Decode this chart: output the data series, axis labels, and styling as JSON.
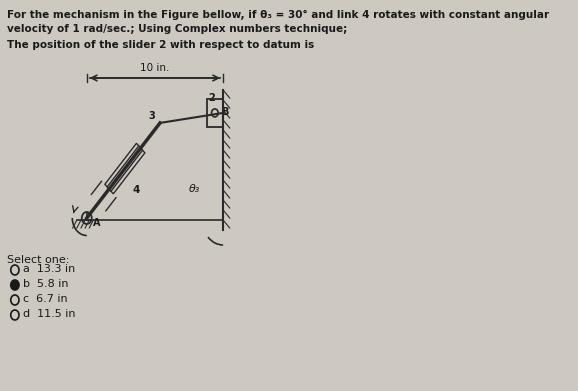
{
  "title_line1": "For the mechanism in the Figure bellow, if θ₃ = 30° and link 4 rotates with constant angular",
  "title_line2": "velocity of 1 rad/sec.; Using Complex numbers technique;",
  "subtitle": "The position of the slider 2 with respect to datum is",
  "dimension_label": "10 in.",
  "angle_label": "θ₃",
  "select_one": "Select one:",
  "options": [
    {
      "letter": "a",
      "text": "13.3 in",
      "selected": false
    },
    {
      "letter": "b",
      "text": "5.8 in",
      "selected": true
    },
    {
      "letter": "c",
      "text": "6.7 in",
      "selected": false
    },
    {
      "letter": "d",
      "text": "11.5 in",
      "selected": false
    }
  ],
  "bg_color": "#cdc8c0",
  "text_color": "#1a1a1a",
  "diagram_color": "#2a2a2a"
}
